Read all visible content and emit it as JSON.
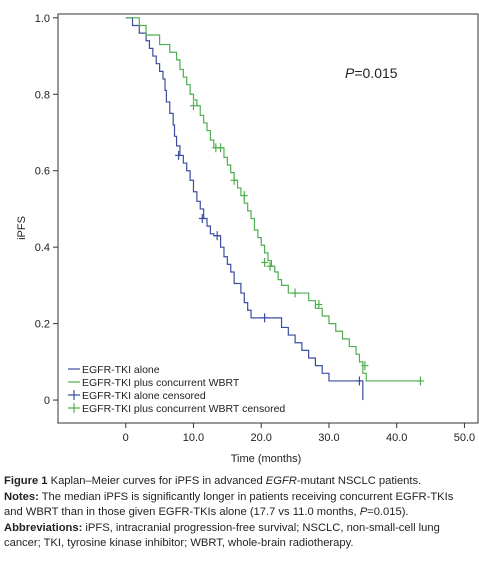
{
  "chart_data": {
    "type": "line",
    "subtype": "kaplan-meier step",
    "xlabel": "Time (months)",
    "ylabel": "iPFS",
    "xlim": [
      -10,
      52
    ],
    "ylim": [
      -0.06,
      1.01
    ],
    "xticks": [
      0,
      10,
      20,
      30,
      40,
      50
    ],
    "xtick_labels": [
      "0",
      "10.0",
      "20.0",
      "30.0",
      "40.0",
      "50.0"
    ],
    "yticks": [
      0,
      0.2,
      0.4,
      0.6,
      0.8,
      1.0
    ],
    "ytick_labels": [
      "0",
      "0.2",
      "0.4",
      "0.6",
      "0.8",
      "1.0"
    ],
    "p_value_prefix": "P",
    "p_value_suffix": "=0.015",
    "legend_position": "bottom-left",
    "grid": false,
    "series": [
      {
        "name": "EGFR-TKI alone",
        "color": "#3a4ea0",
        "censored_name": "EGFR-TKI alone censored",
        "steps": [
          [
            0,
            1.0
          ],
          [
            1,
            0.98
          ],
          [
            2,
            0.96
          ],
          [
            3,
            0.94
          ],
          [
            3.5,
            0.92
          ],
          [
            4,
            0.9
          ],
          [
            4.5,
            0.88
          ],
          [
            5,
            0.86
          ],
          [
            5.5,
            0.84
          ],
          [
            5.8,
            0.81
          ],
          [
            6,
            0.78
          ],
          [
            6.5,
            0.75
          ],
          [
            7,
            0.72
          ],
          [
            7.2,
            0.69
          ],
          [
            7.5,
            0.665
          ],
          [
            8,
            0.64
          ],
          [
            8.5,
            0.62
          ],
          [
            9,
            0.6
          ],
          [
            9.5,
            0.575
          ],
          [
            10,
            0.545
          ],
          [
            10.5,
            0.52
          ],
          [
            11,
            0.5
          ],
          [
            11.5,
            0.475
          ],
          [
            12,
            0.455
          ],
          [
            12.5,
            0.435
          ],
          [
            13,
            0.43
          ],
          [
            14,
            0.4
          ],
          [
            14.5,
            0.375
          ],
          [
            15,
            0.355
          ],
          [
            15.5,
            0.335
          ],
          [
            16,
            0.305
          ],
          [
            17,
            0.28
          ],
          [
            17.5,
            0.255
          ],
          [
            18,
            0.235
          ],
          [
            18.5,
            0.215
          ],
          [
            23,
            0.19
          ],
          [
            24,
            0.17
          ],
          [
            25,
            0.15
          ],
          [
            26,
            0.13
          ],
          [
            27,
            0.11
          ],
          [
            28,
            0.09
          ],
          [
            29,
            0.07
          ],
          [
            30,
            0.05
          ],
          [
            35,
            0.0
          ]
        ],
        "end_x": 35,
        "censored": [
          [
            7.8,
            0.64
          ],
          [
            11.3,
            0.475
          ],
          [
            13.5,
            0.43
          ],
          [
            20.5,
            0.215
          ],
          [
            34.5,
            0.05
          ]
        ]
      },
      {
        "name": "EGFR-TKI plus concurrent WBRT",
        "color": "#4fae4f",
        "censored_name": "EGFR-TKI plus concurrent WBRT censored",
        "steps": [
          [
            0,
            1.0
          ],
          [
            2,
            0.98
          ],
          [
            3,
            0.955
          ],
          [
            5,
            0.93
          ],
          [
            6.5,
            0.91
          ],
          [
            7.5,
            0.89
          ],
          [
            8,
            0.865
          ],
          [
            8.5,
            0.845
          ],
          [
            9,
            0.825
          ],
          [
            9.5,
            0.8
          ],
          [
            10,
            0.785
          ],
          [
            10.5,
            0.77
          ],
          [
            11,
            0.745
          ],
          [
            11.5,
            0.725
          ],
          [
            12,
            0.705
          ],
          [
            12.5,
            0.68
          ],
          [
            13,
            0.66
          ],
          [
            14.5,
            0.635
          ],
          [
            15,
            0.615
          ],
          [
            15.5,
            0.595
          ],
          [
            16,
            0.575
          ],
          [
            16.5,
            0.555
          ],
          [
            17,
            0.535
          ],
          [
            17.5,
            0.515
          ],
          [
            18,
            0.495
          ],
          [
            18.5,
            0.475
          ],
          [
            19,
            0.445
          ],
          [
            19.5,
            0.425
          ],
          [
            20,
            0.405
          ],
          [
            20.5,
            0.385
          ],
          [
            21,
            0.365
          ],
          [
            21.5,
            0.35
          ],
          [
            22,
            0.335
          ],
          [
            22.5,
            0.315
          ],
          [
            23,
            0.3
          ],
          [
            24,
            0.28
          ],
          [
            27,
            0.26
          ],
          [
            28,
            0.24
          ],
          [
            29,
            0.22
          ],
          [
            30,
            0.2
          ],
          [
            31,
            0.18
          ],
          [
            32,
            0.16
          ],
          [
            33,
            0.14
          ],
          [
            34,
            0.12
          ],
          [
            34.5,
            0.1
          ],
          [
            35,
            0.07
          ],
          [
            35.5,
            0.05
          ],
          [
            43.5,
            0.05
          ]
        ],
        "end_x": 43.5,
        "censored": [
          [
            10,
            0.77
          ],
          [
            13.3,
            0.66
          ],
          [
            14,
            0.66
          ],
          [
            16,
            0.575
          ],
          [
            17.5,
            0.535
          ],
          [
            20.5,
            0.36
          ],
          [
            21.3,
            0.35
          ],
          [
            25,
            0.28
          ],
          [
            28.5,
            0.25
          ],
          [
            35.3,
            0.09
          ],
          [
            43.5,
            0.05
          ]
        ]
      }
    ]
  },
  "caption": {
    "figure_label": "Figure 1",
    "figure_text_1": " Kaplan–Meier curves for iPFS in advanced ",
    "figure_text_italic": "EGFR",
    "figure_text_2": "-mutant NSCLC patients.",
    "notes_label": "Notes:",
    "notes_text_1": " The median iPFS is significantly longer in patients receiving concurrent EGFR-TKIs and WBRT than in those given EGFR-TKIs alone (17.7 vs 11.0 months, ",
    "notes_text_italic": "P",
    "notes_text_2": "=0.015).",
    "abbr_label": "Abbreviations:",
    "abbr_text": " iPFS, intracranial progression-free survival; NSCLC, non-small-cell lung cancer; TKI, tyrosine kinase inhibitor; WBRT, whole-brain radiotherapy."
  }
}
